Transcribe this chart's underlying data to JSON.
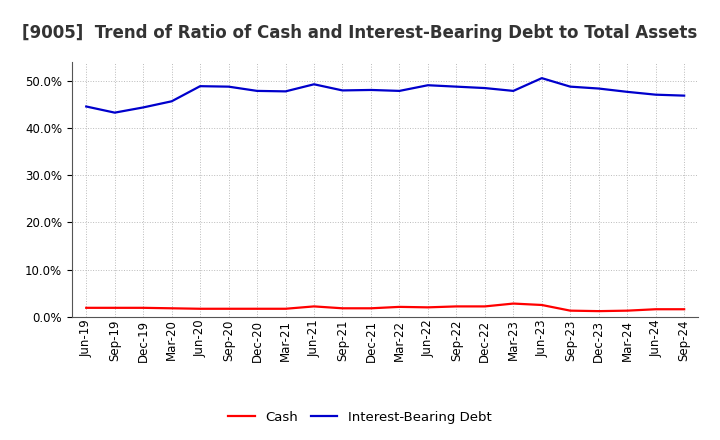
{
  "title": "[9005]  Trend of Ratio of Cash and Interest-Bearing Debt to Total Assets",
  "x_labels": [
    "Jun-19",
    "Sep-19",
    "Dec-19",
    "Mar-20",
    "Jun-20",
    "Sep-20",
    "Dec-20",
    "Mar-21",
    "Jun-21",
    "Sep-21",
    "Dec-21",
    "Mar-22",
    "Jun-22",
    "Sep-22",
    "Dec-22",
    "Mar-23",
    "Jun-23",
    "Sep-23",
    "Dec-23",
    "Mar-24",
    "Jun-24",
    "Sep-24"
  ],
  "cash": [
    0.019,
    0.019,
    0.019,
    0.018,
    0.017,
    0.017,
    0.017,
    0.017,
    0.022,
    0.018,
    0.018,
    0.021,
    0.02,
    0.022,
    0.022,
    0.028,
    0.025,
    0.013,
    0.012,
    0.013,
    0.016,
    0.016
  ],
  "interest_bearing_debt": [
    0.445,
    0.432,
    0.443,
    0.456,
    0.488,
    0.487,
    0.478,
    0.477,
    0.492,
    0.479,
    0.48,
    0.478,
    0.49,
    0.487,
    0.484,
    0.478,
    0.505,
    0.487,
    0.483,
    0.476,
    0.47,
    0.468
  ],
  "cash_color": "#ff0000",
  "debt_color": "#0000cc",
  "background_color": "#ffffff",
  "plot_bg_color": "#ffffff",
  "grid_color": "#bbbbbb",
  "ylim": [
    0.0,
    0.54
  ],
  "yticks": [
    0.0,
    0.1,
    0.2,
    0.3,
    0.4,
    0.5
  ],
  "legend_cash": "Cash",
  "legend_debt": "Interest-Bearing Debt",
  "title_fontsize": 12,
  "tick_fontsize": 8.5,
  "legend_fontsize": 9.5,
  "line_width": 1.6
}
